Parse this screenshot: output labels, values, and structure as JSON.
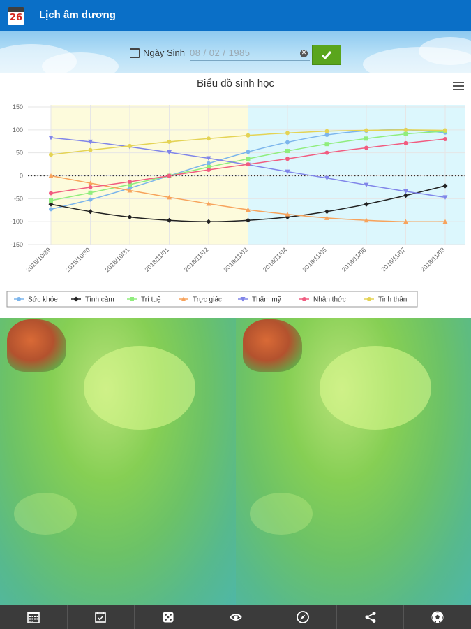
{
  "app": {
    "title": "Lịch âm dương",
    "icon_day": "26"
  },
  "dob": {
    "label": "Ngày Sinh",
    "value": "08 / 02 / 1985",
    "clear_icon": "clear-icon",
    "ok_icon": "check-icon"
  },
  "nav": [
    {
      "name": "calendar-month-icon"
    },
    {
      "name": "calendar-check-icon"
    },
    {
      "name": "dice-icon"
    },
    {
      "name": "eye-swap-icon"
    },
    {
      "name": "compass-icon"
    },
    {
      "name": "share-icon"
    },
    {
      "name": "soccer-ball-icon"
    }
  ],
  "chart_data": {
    "type": "line",
    "title": "Biểu đồ sinh học",
    "ylim": [
      -150,
      150
    ],
    "yticks": [
      "150",
      "100",
      "50",
      "0",
      "-50",
      "-100",
      "-150"
    ],
    "ytick_values": [
      150,
      100,
      50,
      0,
      -50,
      -100,
      -150
    ],
    "categories": [
      "2018/10/29",
      "2018/10/30",
      "2018/10/31",
      "2018/11/01",
      "2018/11/02",
      "2018/11/03",
      "2018/11/04",
      "2018/11/05",
      "2018/11/06",
      "2018/11/07",
      "2018/11/08"
    ],
    "bands": [
      {
        "from": 0,
        "to": 5,
        "color": "#fdfbdc"
      },
      {
        "from": 5,
        "to": 10,
        "color": "#dcf7fd"
      }
    ],
    "zero_line": "dotted",
    "legend_position": "bottom",
    "series": [
      {
        "name": "Sức khỏe",
        "color": "#7cb5ec",
        "marker": "circle",
        "values": [
          -73,
          -52,
          -27,
          0,
          27,
          52,
          73,
          89,
          98,
          100,
          94
        ]
      },
      {
        "name": "Tình cảm",
        "color": "#222222",
        "marker": "diamond",
        "values": [
          -62,
          -78,
          -90,
          -97,
          -100,
          -97,
          -90,
          -78,
          -62,
          -43,
          -22
        ]
      },
      {
        "name": "Trí tuệ",
        "color": "#90ed7d",
        "marker": "square",
        "values": [
          -54,
          -37,
          -19,
          0,
          19,
          37,
          54,
          69,
          81,
          91,
          97
        ]
      },
      {
        "name": "Trực giác",
        "color": "#f7a35c",
        "marker": "triangle",
        "values": [
          0,
          -16,
          -32,
          -47,
          -61,
          -74,
          -84,
          -92,
          -97,
          -100,
          -100
        ]
      },
      {
        "name": "Thẩm mỹ",
        "color": "#8085e9",
        "marker": "triangle-down",
        "values": [
          83,
          74,
          63,
          51,
          38,
          24,
          9,
          -5,
          -20,
          -34,
          -47
        ]
      },
      {
        "name": "Nhận thức",
        "color": "#f15c80",
        "marker": "circle",
        "values": [
          -38,
          -25,
          -13,
          0,
          13,
          25,
          37,
          50,
          61,
          71,
          80
        ]
      },
      {
        "name": "Tinh thần",
        "color": "#e4d354",
        "marker": "circle",
        "values": [
          46,
          56,
          65,
          74,
          81,
          88,
          93,
          97,
          99,
          100,
          99
        ]
      }
    ]
  }
}
